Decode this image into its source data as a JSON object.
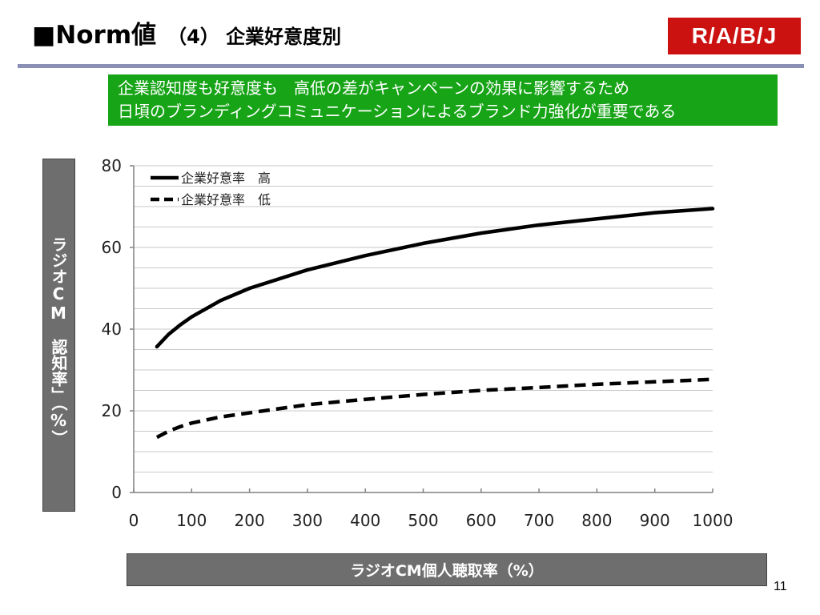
{
  "header": {
    "title": "■Norm値",
    "subtitle": "（4） 企業好意度別",
    "logo": "R/A/B/J"
  },
  "banner": {
    "line1": "企業認知度も好意度も　高低の差がキャンペーンの効果に影響するため",
    "line2": "日頃のブランディングコミュニケーションによるブランド力強化が重要である"
  },
  "footer": {
    "page_number": "11"
  },
  "colors": {
    "banner_bg": "#17a417",
    "logo_bg": "#cc1111",
    "axis_label_bg": "#6e6e6e",
    "rule": "#8a8fb5",
    "series": "#000000"
  },
  "chart_data": {
    "type": "line",
    "title": "",
    "xlabel": "ラジオCM個人聴取率（%）",
    "ylabel": "ラジオCM　認知率」（%）",
    "xlim": [
      0,
      1000
    ],
    "ylim": [
      0,
      80
    ],
    "x_ticks": [
      "0",
      "100",
      "200",
      "300",
      "400",
      "500",
      "600",
      "700",
      "800",
      "900",
      "1000"
    ],
    "y_ticks": [
      "0",
      "20",
      "40",
      "60",
      "80"
    ],
    "grid": "horizontal",
    "legend_position": "top-left",
    "series": [
      {
        "name": "企業好意率　高",
        "style": "solid",
        "x": [
          40,
          60,
          80,
          100,
          150,
          200,
          300,
          400,
          500,
          600,
          700,
          800,
          900,
          1000
        ],
        "values": [
          35.7,
          38.7,
          41.0,
          43.0,
          47.0,
          50.0,
          54.5,
          58.0,
          61.0,
          63.5,
          65.5,
          67.0,
          68.5,
          69.5
        ]
      },
      {
        "name": "企業好意率　低",
        "style": "dashed",
        "x": [
          40,
          60,
          80,
          100,
          150,
          200,
          300,
          400,
          500,
          600,
          700,
          800,
          900,
          1000
        ],
        "values": [
          13.5,
          15.0,
          16.1,
          17.0,
          18.5,
          19.5,
          21.5,
          22.8,
          24.0,
          25.0,
          25.7,
          26.5,
          27.1,
          27.7
        ]
      }
    ]
  }
}
